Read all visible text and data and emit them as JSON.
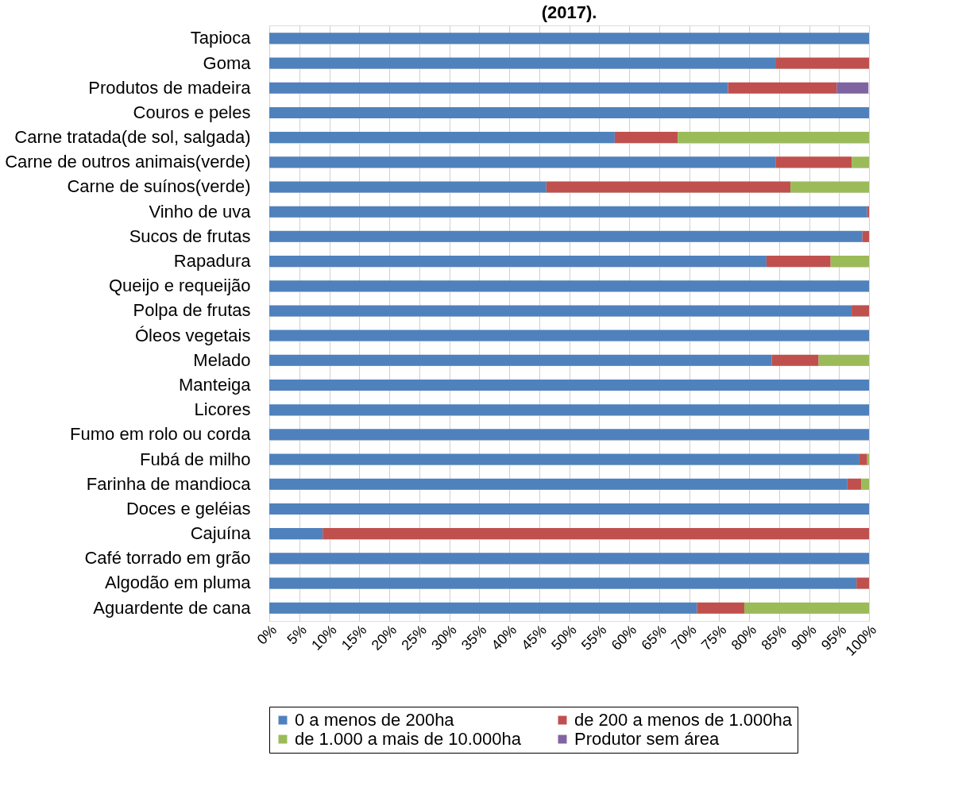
{
  "chart_data": {
    "type": "bar",
    "orientation": "horizontal",
    "stacked": true,
    "title": "(2017).",
    "categories": [
      "Tapioca",
      "Goma",
      "Produtos de madeira",
      "Couros e peles",
      "Carne tratada(de sol, salgada)",
      "Carne de outros animais(verde)",
      "Carne de suínos(verde)",
      "Vinho de uva",
      "Sucos de frutas",
      "Rapadura",
      "Queijo e requeijão",
      "Polpa de frutas",
      "Óleos vegetais",
      "Melado",
      "Manteiga",
      "Licores",
      "Fumo em rolo ou corda",
      "Fubá de milho",
      "Farinha de mandioca",
      "Doces e geléias",
      "Cajuína",
      "Café torrado em grão",
      "Algodão em pluma",
      "Aguardente de cana"
    ],
    "series": [
      {
        "name": "0 a menos de 200ha",
        "color": "#4f81bd",
        "values": [
          100,
          84.5,
          76.5,
          100,
          57.6,
          84.4,
          46.2,
          99.7,
          98.9,
          82.9,
          100,
          97.1,
          100,
          83.8,
          100,
          100,
          100,
          98.4,
          96.4,
          100,
          8.9,
          100,
          97.9,
          71.3
        ]
      },
      {
        "name": "de 200 a menos de 1.000ha",
        "color": "#c0504d",
        "values": [
          null,
          15.5,
          18.1,
          null,
          10.5,
          12.7,
          40.7,
          0.3,
          1.1,
          10.7,
          null,
          2.9,
          null,
          7.8,
          null,
          null,
          null,
          1.3,
          2.3,
          null,
          91.1,
          null,
          2.1,
          7.9
        ]
      },
      {
        "name": "de 1.000 a mais de 10.000ha",
        "color": "#9bbb59",
        "values": [
          null,
          null,
          null,
          null,
          31.9,
          2.9,
          13.1,
          null,
          null,
          6.4,
          null,
          null,
          null,
          8.4,
          null,
          null,
          null,
          0.3,
          1.3,
          null,
          null,
          null,
          null,
          20.8
        ]
      },
      {
        "name": "Produtor sem área",
        "color": "#8064a2",
        "values": [
          null,
          null,
          5.3,
          null,
          null,
          null,
          null,
          null,
          null,
          null,
          null,
          null,
          null,
          null,
          null,
          null,
          null,
          null,
          null,
          null,
          null,
          null,
          null,
          null
        ]
      }
    ],
    "xlim": [
      0,
      100
    ],
    "xticks": [
      {
        "value": 0,
        "label": "0%"
      },
      {
        "value": 5,
        "label": "5%"
      },
      {
        "value": 10,
        "label": "10%"
      },
      {
        "value": 15,
        "label": "15%"
      },
      {
        "value": 20,
        "label": "20%"
      },
      {
        "value": 25,
        "label": "25%"
      },
      {
        "value": 30,
        "label": "30%"
      },
      {
        "value": 35,
        "label": "35%"
      },
      {
        "value": 40,
        "label": "40%"
      },
      {
        "value": 45,
        "label": "45%"
      },
      {
        "value": 50,
        "label": "50%"
      },
      {
        "value": 55,
        "label": "55%"
      },
      {
        "value": 60,
        "label": "60%"
      },
      {
        "value": 65,
        "label": "65%"
      },
      {
        "value": 70,
        "label": "70%"
      },
      {
        "value": 75,
        "label": "75%"
      },
      {
        "value": 80,
        "label": "80%"
      },
      {
        "value": 85,
        "label": "85%"
      },
      {
        "value": 90,
        "label": "90%"
      },
      {
        "value": 95,
        "label": "95%"
      },
      {
        "value": 100,
        "label": "100%"
      }
    ],
    "grid": true,
    "legend": "bottom"
  }
}
